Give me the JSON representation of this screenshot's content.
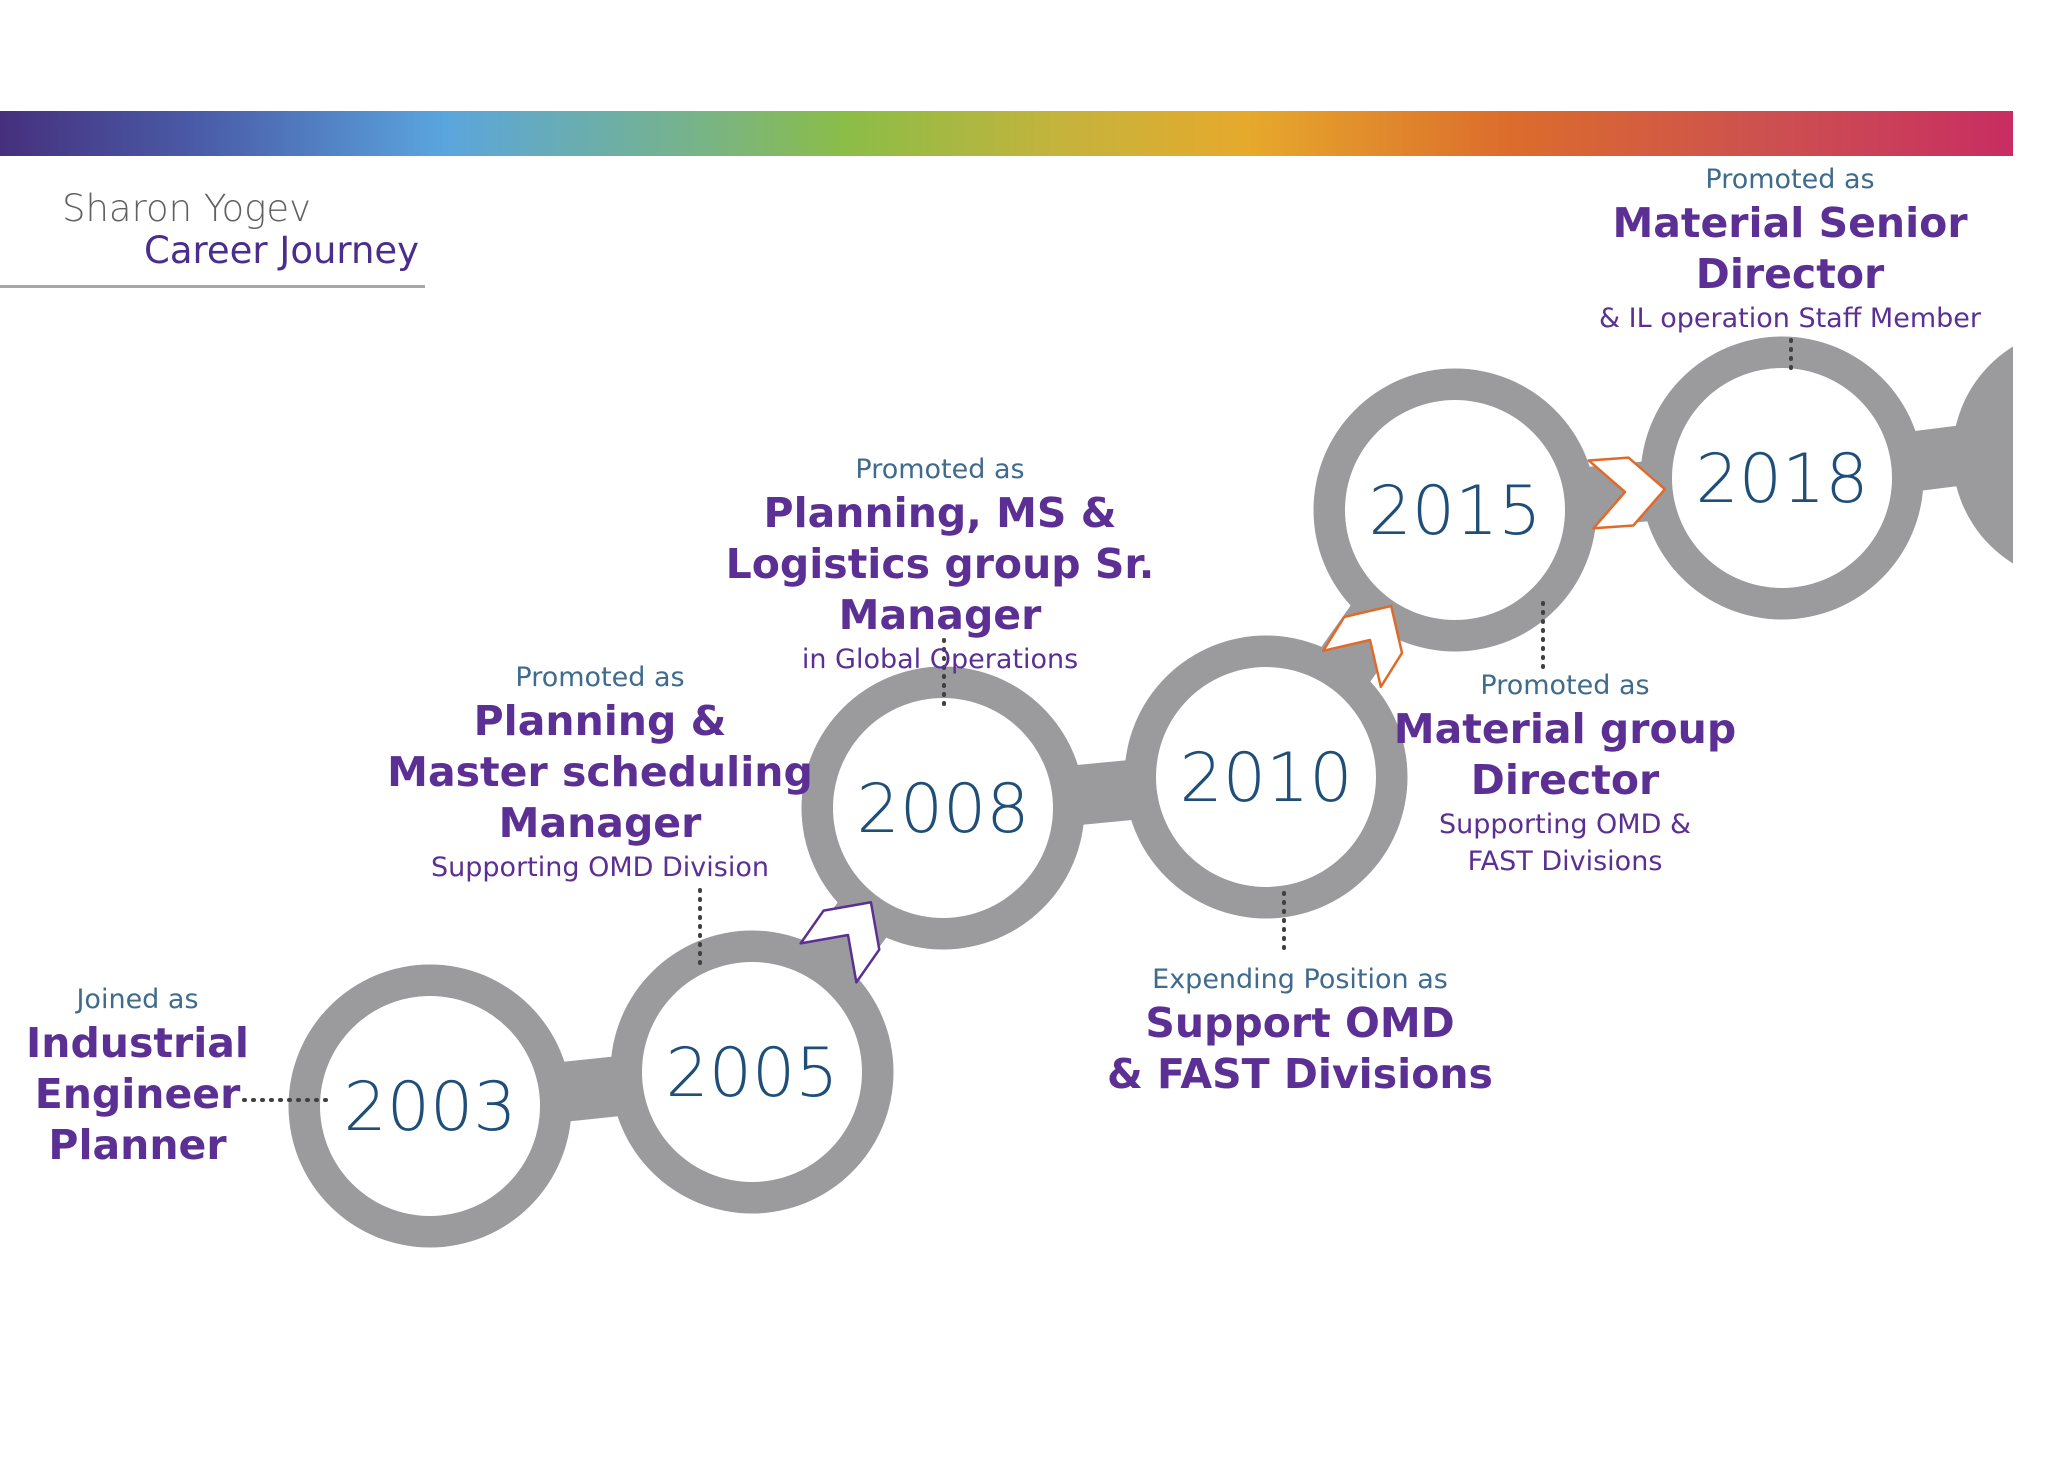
{
  "title": {
    "name": "Sharon Yogev",
    "subtitle": "Career Journey"
  },
  "colors": {
    "ring": "#9b9b9e",
    "year_text": "#1f4e79",
    "role": "#5b2f93",
    "intro": "#3f6b8d",
    "arrow_purple": "#5b2f93",
    "arrow_orange": "#e06a2a"
  },
  "milestones": [
    {
      "year": "2003",
      "intro": "Joined as",
      "role": [
        "Industrial",
        "Engineer",
        "Planner"
      ],
      "detail": []
    },
    {
      "year": "2005",
      "intro": "Promoted as",
      "role": [
        "Planning &",
        "Master scheduling",
        "Manager"
      ],
      "detail": [
        "Supporting OMD Division"
      ]
    },
    {
      "year": "2008",
      "intro": "Promoted as",
      "role": [
        "Planning, MS &",
        "Logistics group Sr. Manager"
      ],
      "detail": [
        "in Global Operations"
      ]
    },
    {
      "year": "2010",
      "intro": "Expending Position as",
      "role": [
        "Support OMD",
        "& FAST Divisions"
      ],
      "detail": []
    },
    {
      "year": "2015",
      "intro": "Promoted as",
      "role": [
        "Material group",
        "Director"
      ],
      "detail": [
        "Supporting OMD &",
        "FAST Divisions"
      ]
    },
    {
      "year": "2018",
      "intro": "Promoted as",
      "role": [
        "Material Senior",
        "Director"
      ],
      "detail": [
        "& IL operation Staff Member"
      ]
    }
  ]
}
